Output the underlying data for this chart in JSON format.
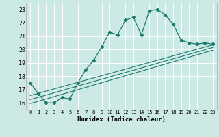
{
  "xlabel": "Humidex (Indice chaleur)",
  "ylabel": "",
  "bg_color": "#cce9e5",
  "grid_color": "#ffffff",
  "line_color": "#1a7a6e",
  "xlim": [
    -0.5,
    23.5
  ],
  "ylim": [
    15.5,
    23.5
  ],
  "yticks": [
    16,
    17,
    18,
    19,
    20,
    21,
    22,
    23
  ],
  "xticks": [
    0,
    1,
    2,
    3,
    4,
    5,
    6,
    7,
    8,
    9,
    10,
    11,
    12,
    13,
    14,
    15,
    16,
    17,
    18,
    19,
    20,
    21,
    22,
    23
  ],
  "main_line_x": [
    0,
    1,
    2,
    3,
    4,
    5,
    6,
    7,
    8,
    9,
    10,
    11,
    12,
    13,
    14,
    15,
    16,
    17,
    18,
    19,
    20,
    21,
    22,
    23
  ],
  "main_line_y": [
    17.5,
    16.7,
    16.0,
    16.0,
    16.4,
    16.3,
    17.5,
    18.5,
    19.2,
    20.2,
    21.3,
    21.1,
    22.2,
    22.4,
    21.1,
    22.9,
    23.0,
    22.6,
    21.9,
    20.7,
    20.5,
    20.4,
    20.5,
    20.4
  ],
  "line2_x": [
    0,
    23
  ],
  "line2_y": [
    16.55,
    20.35
  ],
  "line3_x": [
    0,
    23
  ],
  "line3_y": [
    16.25,
    20.15
  ],
  "line4_x": [
    0,
    23
  ],
  "line4_y": [
    15.95,
    19.95
  ]
}
